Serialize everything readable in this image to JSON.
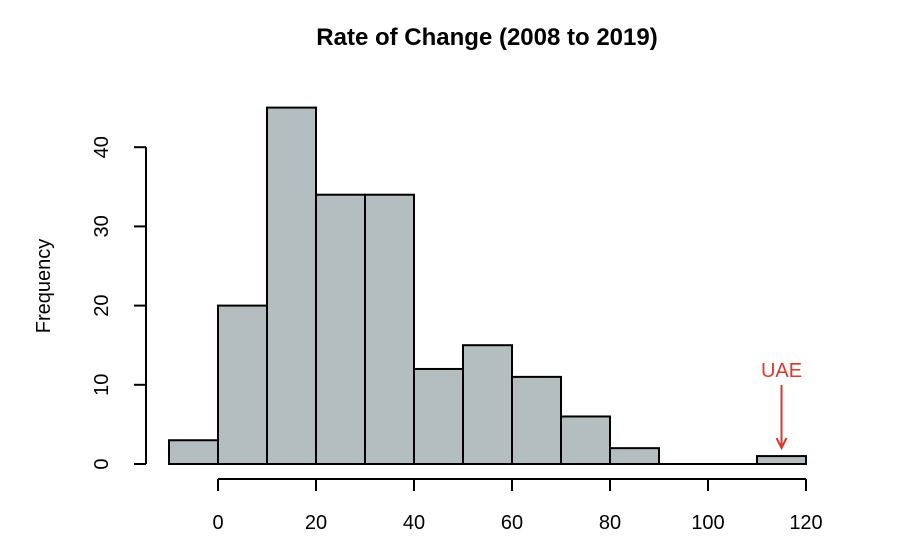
{
  "chart_data": {
    "type": "bar",
    "title": "Rate of Change (2008 to 2019)",
    "xlabel": "",
    "ylabel": "Frequency",
    "bins": [
      {
        "start": -10,
        "end": 0,
        "count": 3
      },
      {
        "start": 0,
        "end": 10,
        "count": 20
      },
      {
        "start": 10,
        "end": 20,
        "count": 45
      },
      {
        "start": 20,
        "end": 30,
        "count": 34
      },
      {
        "start": 30,
        "end": 40,
        "count": 34
      },
      {
        "start": 40,
        "end": 50,
        "count": 12
      },
      {
        "start": 50,
        "end": 60,
        "count": 15
      },
      {
        "start": 60,
        "end": 70,
        "count": 11
      },
      {
        "start": 70,
        "end": 80,
        "count": 6
      },
      {
        "start": 80,
        "end": 90,
        "count": 2
      },
      {
        "start": 90,
        "end": 100,
        "count": 0
      },
      {
        "start": 100,
        "end": 110,
        "count": 0
      },
      {
        "start": 110,
        "end": 120,
        "count": 1
      }
    ],
    "x_ticks": [
      0,
      20,
      40,
      60,
      80,
      100,
      120
    ],
    "y_ticks": [
      0,
      10,
      20,
      30,
      40
    ],
    "xlim": [
      -10,
      120
    ],
    "ylim": [
      0,
      45
    ],
    "grid": false,
    "bar_color": "#b4bec1",
    "annotations": [
      {
        "label": "UAE",
        "x": 115,
        "color": "#d83a2e",
        "arrow_from": 10,
        "arrow_to": 1.8
      }
    ]
  }
}
